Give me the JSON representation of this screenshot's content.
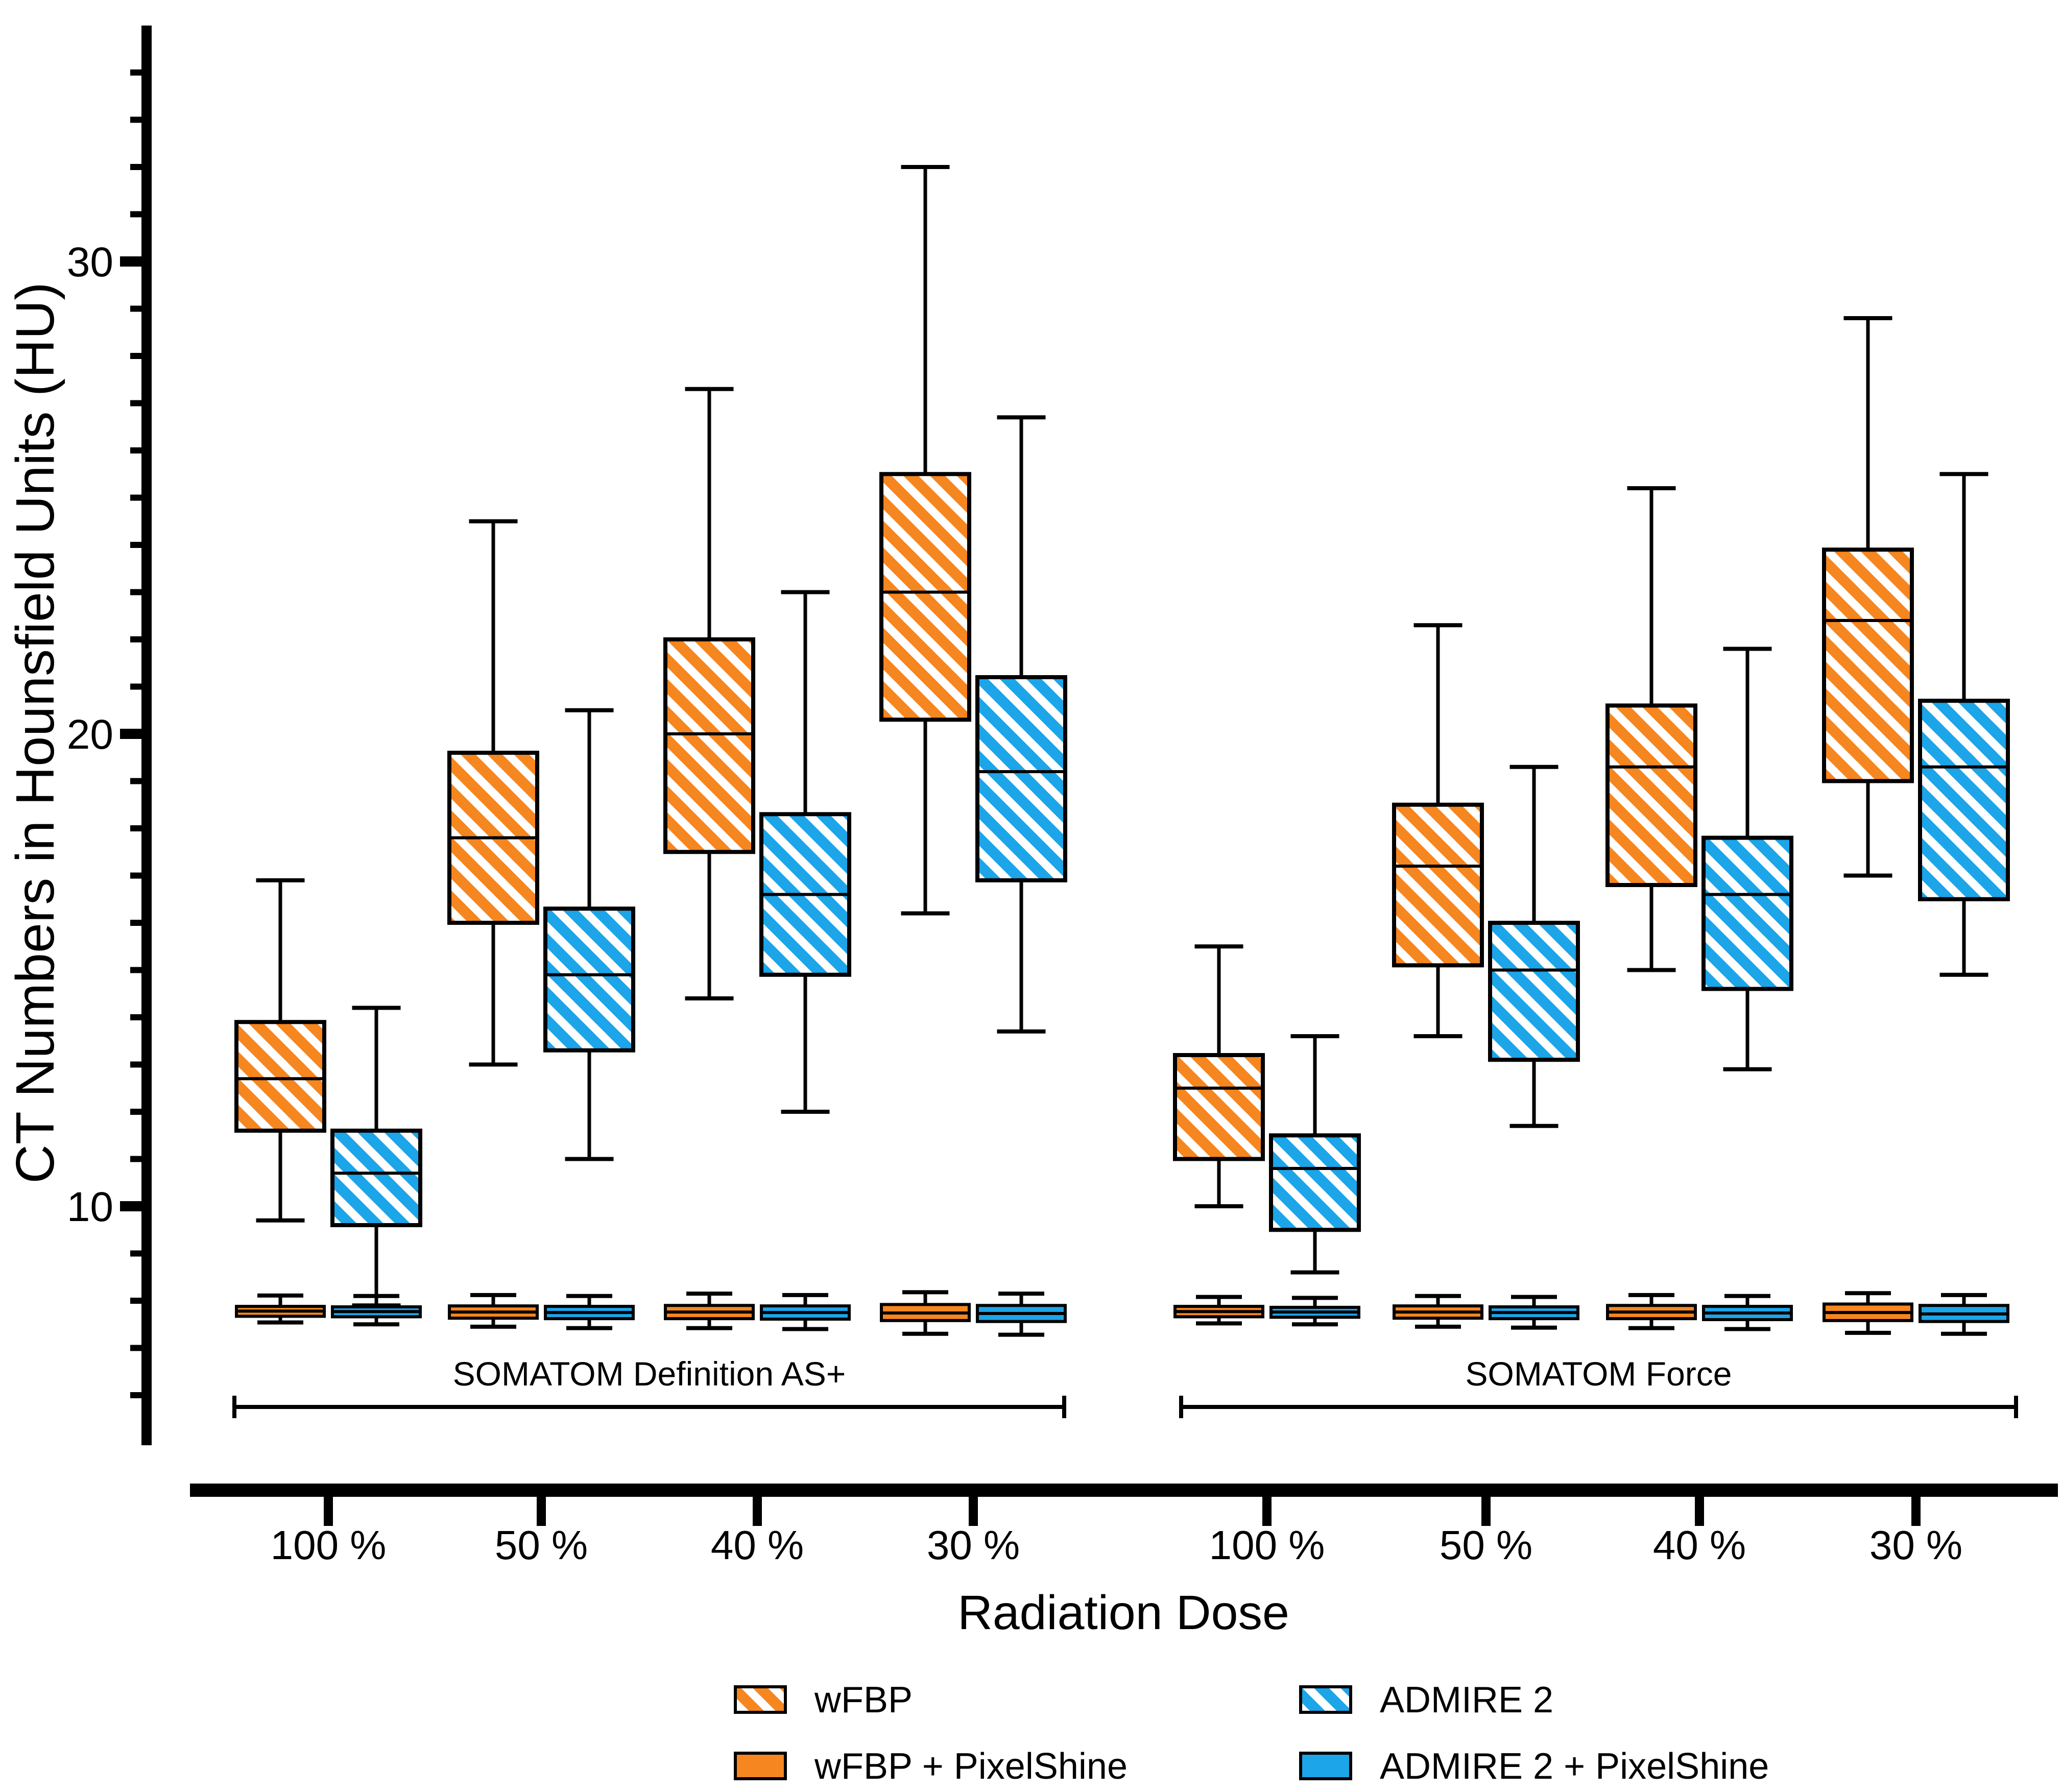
{
  "figure": {
    "background": "#FFFFFF",
    "ink_color": "#000000"
  },
  "colors": {
    "orange": "#F6861F",
    "blue": "#1CA5E8",
    "ink": "#000000"
  },
  "axes": {
    "y_label": "CT Numbers in Hounsfield Units (HU)",
    "x_label": "Radiation Dose",
    "y_major_tick_labels": [
      "10",
      "20",
      "30"
    ]
  },
  "group_labels": [
    "SOMATOM Definition AS+",
    "SOMATOM Force"
  ],
  "legend": {
    "items": [
      {
        "label": "wFBP",
        "swatch": "orange-hatched"
      },
      {
        "label": "ADMIRE 2",
        "swatch": "blue-hatched"
      },
      {
        "label": "wFBP + PixelShine",
        "swatch": "orange-solid"
      },
      {
        "label": "ADMIRE 2 + PixelShine",
        "swatch": "blue-solid"
      }
    ]
  },
  "chart_data": {
    "type": "boxplot",
    "title": "",
    "ylabel": "CT Numbers in Hounsfield Units (HU)",
    "xlabel": "Radiation Dose",
    "ylim": [
      5,
      35
    ],
    "yticks": [
      10,
      20,
      30
    ],
    "y_minor_tick_step": 1,
    "grid": false,
    "legend_position": "bottom",
    "dose_labels": [
      "100 %",
      "50 %",
      "40 %",
      "30 %"
    ],
    "box_format": [
      "whisker_low",
      "q1",
      "median",
      "q3",
      "whisker_high"
    ],
    "series": [
      {
        "key": "wfbp",
        "label": "wFBP",
        "color": "#F6861F",
        "fill": "hatch"
      },
      {
        "key": "admire2",
        "label": "ADMIRE 2",
        "color": "#1CA5E8",
        "fill": "hatch"
      },
      {
        "key": "wfbp_ps",
        "label": "wFBP + PixelShine",
        "color": "#F6861F",
        "fill": "solid"
      },
      {
        "key": "admire2_ps",
        "label": "ADMIRE 2 + PixelShine",
        "color": "#1CA5E8",
        "fill": "solid"
      }
    ],
    "groups": [
      {
        "label": "SOMATOM Definition AS+",
        "doses": [
          {
            "dose": "100 %",
            "wfbp": [
              9.7,
              11.6,
              12.7,
              13.9,
              16.9
            ],
            "admire2": [
              7.9,
              9.6,
              10.7,
              11.6,
              14.2
            ],
            "wfbp_ps": [
              7.54,
              7.67,
              7.78,
              7.88,
              8.11
            ],
            "admire2_ps": [
              7.5,
              7.66,
              7.77,
              7.87,
              8.1
            ]
          },
          {
            "dose": "50 %",
            "wfbp": [
              13.0,
              16.0,
              17.8,
              19.6,
              24.5
            ],
            "admire2": [
              11.0,
              13.3,
              14.9,
              16.3,
              20.5
            ],
            "wfbp_ps": [
              7.45,
              7.63,
              7.76,
              7.89,
              8.12
            ],
            "admire2_ps": [
              7.42,
              7.62,
              7.75,
              7.88,
              8.1
            ]
          },
          {
            "dose": "40 %",
            "wfbp": [
              14.4,
              17.5,
              20.0,
              22.0,
              27.3
            ],
            "admire2": [
              12.0,
              14.9,
              16.6,
              18.3,
              23.0
            ],
            "wfbp_ps": [
              7.42,
              7.62,
              7.76,
              7.9,
              8.15
            ],
            "admire2_ps": [
              7.4,
              7.61,
              7.75,
              7.89,
              8.12
            ]
          },
          {
            "dose": "30 %",
            "wfbp": [
              16.2,
              20.3,
              23.0,
              25.5,
              32.0
            ],
            "admire2": [
              13.7,
              16.9,
              19.2,
              21.2,
              26.7
            ],
            "wfbp_ps": [
              7.3,
              7.58,
              7.74,
              7.92,
              8.18
            ],
            "admire2_ps": [
              7.28,
              7.56,
              7.73,
              7.9,
              8.15
            ]
          }
        ]
      },
      {
        "label": "SOMATOM Force",
        "doses": [
          {
            "dose": "100 %",
            "wfbp": [
              10.0,
              11.0,
              12.5,
              13.2,
              15.5
            ],
            "admire2": [
              8.6,
              9.5,
              10.8,
              11.5,
              13.6
            ],
            "wfbp_ps": [
              7.52,
              7.66,
              7.77,
              7.88,
              8.08
            ],
            "admire2_ps": [
              7.5,
              7.65,
              7.76,
              7.86,
              8.06
            ]
          },
          {
            "dose": "50 %",
            "wfbp": [
              13.6,
              15.1,
              17.2,
              18.5,
              22.3
            ],
            "admire2": [
              11.7,
              13.1,
              15.0,
              16.0,
              19.3
            ],
            "wfbp_ps": [
              7.45,
              7.63,
              7.76,
              7.89,
              8.1
            ],
            "admire2_ps": [
              7.43,
              7.62,
              7.75,
              7.87,
              8.08
            ]
          },
          {
            "dose": "40 %",
            "wfbp": [
              15.0,
              16.8,
              19.3,
              20.6,
              25.2
            ],
            "admire2": [
              12.9,
              14.6,
              16.6,
              17.8,
              21.8
            ],
            "wfbp_ps": [
              7.42,
              7.62,
              7.76,
              7.9,
              8.12
            ],
            "admire2_ps": [
              7.4,
              7.6,
              7.74,
              7.88,
              8.1
            ]
          },
          {
            "dose": "30 %",
            "wfbp": [
              17.0,
              19.0,
              22.4,
              23.9,
              28.8
            ],
            "admire2": [
              14.9,
              16.5,
              19.3,
              20.7,
              25.5
            ],
            "wfbp_ps": [
              7.32,
              7.58,
              7.75,
              7.93,
              8.16
            ],
            "admire2_ps": [
              7.3,
              7.56,
              7.72,
              7.9,
              8.12
            ]
          }
        ]
      }
    ]
  }
}
